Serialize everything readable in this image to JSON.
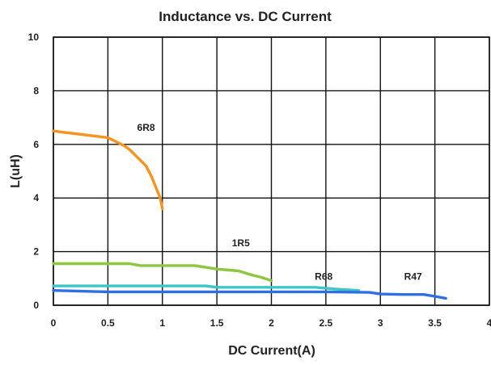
{
  "chart_data": {
    "type": "line",
    "title": "Inductance vs. DC Current",
    "xlabel": "DC Current(A)",
    "ylabel": "L(uH)",
    "xlim": [
      0,
      4
    ],
    "ylim": [
      0,
      10
    ],
    "x_ticks": [
      "0",
      "0.5",
      "1",
      "1.5",
      "2",
      "2.5",
      "3",
      "3.5",
      "4"
    ],
    "y_ticks": [
      "0",
      "2",
      "4",
      "6",
      "8",
      "10"
    ],
    "grid": true,
    "series": [
      {
        "name": "6R8",
        "color": "#F7931E",
        "label_at": [
          0.85,
          6.5
        ],
        "x": [
          0,
          0.1,
          0.2,
          0.3,
          0.4,
          0.5,
          0.55,
          0.6,
          0.65,
          0.7,
          0.75,
          0.8,
          0.85,
          0.9,
          0.95,
          0.98,
          1.0
        ],
        "y": [
          6.5,
          6.45,
          6.4,
          6.35,
          6.3,
          6.25,
          6.15,
          6.05,
          5.95,
          5.8,
          5.6,
          5.4,
          5.2,
          4.8,
          4.3,
          4.0,
          3.6
        ]
      },
      {
        "name": "1R5",
        "color": "#8DC63F",
        "label_at": [
          1.72,
          2.2
        ],
        "x": [
          0,
          0.7,
          0.8,
          1.3,
          1.5,
          1.7,
          1.8,
          1.9,
          2.0
        ],
        "y": [
          1.55,
          1.55,
          1.48,
          1.48,
          1.35,
          1.28,
          1.15,
          1.05,
          0.92
        ]
      },
      {
        "name": "R68",
        "color": "#3FC5C5",
        "label_at": [
          2.48,
          0.95
        ],
        "x": [
          0,
          1.4,
          1.5,
          2.4,
          2.6,
          2.8
        ],
        "y": [
          0.72,
          0.72,
          0.67,
          0.67,
          0.6,
          0.55
        ]
      },
      {
        "name": "R47",
        "color": "#2F6FE6",
        "label_at": [
          3.3,
          0.95
        ],
        "x": [
          0,
          0.5,
          1.0,
          1.5,
          2.0,
          2.5,
          2.9,
          3.0,
          3.2,
          3.4,
          3.5,
          3.6
        ],
        "y": [
          0.55,
          0.5,
          0.5,
          0.5,
          0.5,
          0.5,
          0.48,
          0.42,
          0.4,
          0.4,
          0.33,
          0.26
        ]
      }
    ]
  }
}
